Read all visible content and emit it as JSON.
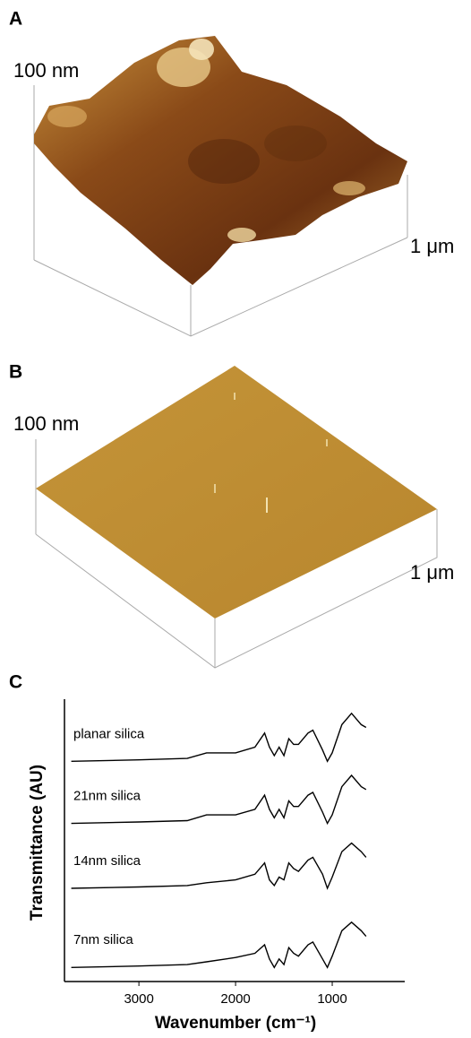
{
  "panels": [
    {
      "label": "A",
      "z_label": "100 nm",
      "xy_label": "1 μm"
    },
    {
      "label": "B",
      "z_label": "100 nm",
      "xy_label": "1 μm"
    }
  ],
  "chart_data": {
    "type": "line",
    "label": "C",
    "x_label": "Wavenumber (cm⁻¹)",
    "y_label": "Transmittance (AU)",
    "x": [
      3700,
      3000,
      2500,
      2300,
      2000,
      1800,
      1700,
      1650,
      1600,
      1550,
      1500,
      1450,
      1400,
      1350,
      1250,
      1200,
      1100,
      1050,
      1000,
      900,
      800,
      700,
      650
    ],
    "xlim": [
      3770,
      250
    ],
    "xticks": [
      3000,
      2000,
      1000
    ],
    "ylim": [
      0,
      10
    ],
    "series": [
      {
        "name": "planar silica",
        "color": "#000000",
        "values": [
          7.8,
          7.85,
          7.9,
          8.1,
          8.1,
          8.3,
          8.8,
          8.3,
          8.0,
          8.3,
          8.0,
          8.6,
          8.4,
          8.4,
          8.8,
          8.9,
          8.2,
          7.8,
          8.1,
          9.1,
          9.5,
          9.1,
          9.0
        ]
      },
      {
        "name": "21nm silica",
        "color": "#000000",
        "values": [
          5.6,
          5.65,
          5.7,
          5.9,
          5.9,
          6.1,
          6.6,
          6.1,
          5.8,
          6.1,
          5.8,
          6.4,
          6.2,
          6.2,
          6.6,
          6.7,
          6.0,
          5.6,
          5.9,
          6.9,
          7.3,
          6.9,
          6.8
        ]
      },
      {
        "name": "14nm silica",
        "color": "#000000",
        "values": [
          3.3,
          3.35,
          3.4,
          3.5,
          3.6,
          3.8,
          4.2,
          3.6,
          3.4,
          3.7,
          3.6,
          4.2,
          4.0,
          3.9,
          4.3,
          4.4,
          3.8,
          3.3,
          3.7,
          4.6,
          4.9,
          4.6,
          4.4
        ]
      },
      {
        "name": "7nm silica",
        "color": "#000000",
        "values": [
          0.5,
          0.55,
          0.6,
          0.7,
          0.85,
          1.0,
          1.3,
          0.8,
          0.5,
          0.8,
          0.6,
          1.2,
          1.0,
          0.9,
          1.3,
          1.4,
          0.8,
          0.5,
          0.9,
          1.8,
          2.1,
          1.8,
          1.6
        ]
      }
    ]
  }
}
